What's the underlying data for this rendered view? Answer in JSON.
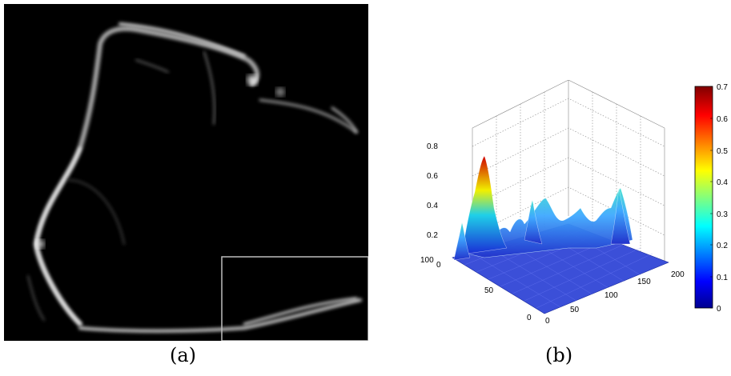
{
  "panel_a": {
    "caption": "(a)"
  },
  "panel_b": {
    "caption": "(b)",
    "chart_data": {
      "type": "surface",
      "z_ticks": [
        "0",
        "0.2",
        "0.4",
        "0.6",
        "0.8"
      ],
      "x_ticks": [
        "0",
        "50",
        "100",
        "150",
        "200"
      ],
      "y_ticks": [
        "0",
        "50",
        "100"
      ],
      "zlim": [
        0,
        0.8
      ],
      "xlim": [
        0,
        200
      ],
      "ylim": [
        0,
        100
      ],
      "grid": true,
      "colormap": "jet",
      "colorbar": {
        "ticks": [
          "0",
          "0.1",
          "0.2",
          "0.3",
          "0.4",
          "0.5",
          "0.6",
          "0.7"
        ],
        "range": [
          0,
          0.7
        ],
        "placement": "right"
      },
      "peaks": [
        {
          "x": 0,
          "y": 85,
          "z": 0.7
        },
        {
          "x": 0,
          "y": 70,
          "z": 0.45
        },
        {
          "x": 95,
          "y": 95,
          "z": 0.35
        },
        {
          "x": 195,
          "y": 98,
          "z": 0.4
        },
        {
          "x": 150,
          "y": 95,
          "z": 0.2
        },
        {
          "x": 40,
          "y": 92,
          "z": 0.18
        }
      ]
    }
  }
}
